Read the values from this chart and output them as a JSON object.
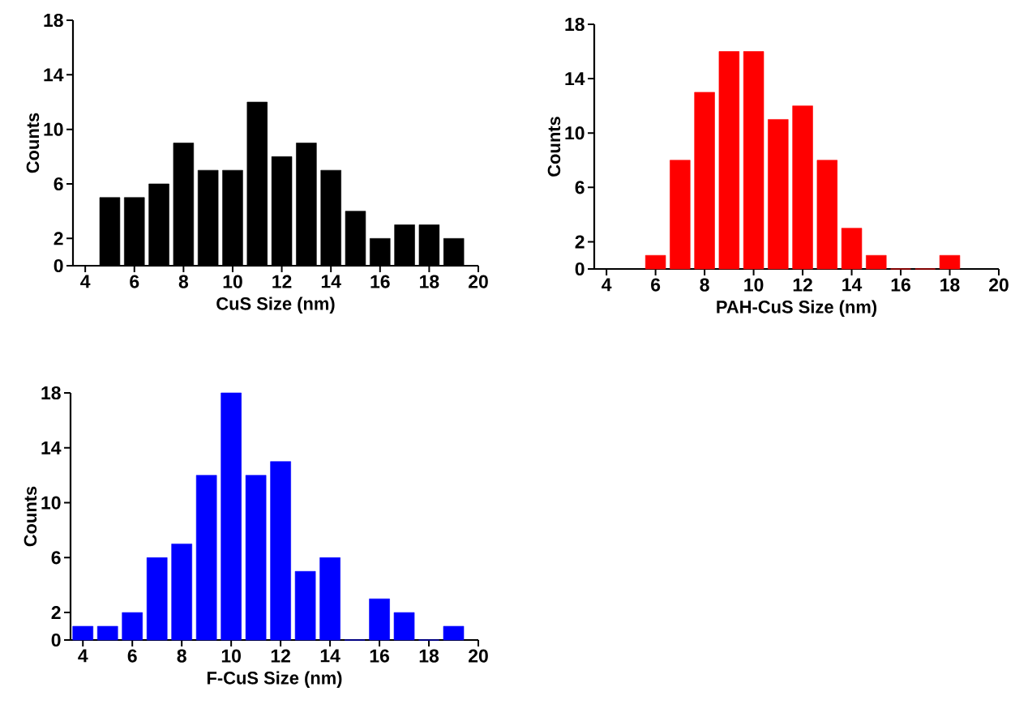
{
  "chart_data": [
    {
      "type": "histogram",
      "xlabel": "CuS Size (nm)",
      "ylabel": "Counts",
      "color": "#000000",
      "bins": [
        4.5,
        5.5,
        6.5,
        7.5,
        8.5,
        9.5,
        10.5,
        11.5,
        12.5,
        13.5,
        14.5,
        15.5,
        16.5,
        17.5,
        18.5,
        19.5
      ],
      "values": [
        5,
        5,
        6,
        9,
        7,
        7,
        12,
        8,
        9,
        7,
        4,
        2,
        3,
        3,
        2
      ],
      "xlim": [
        3.5,
        20
      ],
      "xticks": [
        4,
        6,
        8,
        10,
        12,
        14,
        16,
        18,
        20
      ],
      "ylim": [
        0,
        18
      ],
      "yticks": [
        0,
        2,
        6,
        10,
        14,
        18
      ]
    },
    {
      "type": "histogram",
      "xlabel": "PAH-CuS Size (nm)",
      "ylabel": "Counts",
      "color": "#ff0000",
      "bins": [
        5.5,
        6.5,
        7.5,
        8.5,
        9.5,
        10.5,
        11.5,
        12.5,
        13.5,
        14.5,
        15.5,
        16.5,
        17.5,
        18.5
      ],
      "values": [
        1,
        8,
        13,
        16,
        16,
        11,
        12,
        8,
        3,
        1,
        0,
        0,
        1
      ],
      "xlim": [
        3.5,
        20
      ],
      "xticks": [
        4,
        6,
        8,
        10,
        12,
        14,
        16,
        18,
        20
      ],
      "ylim": [
        0,
        18
      ],
      "yticks": [
        0,
        2,
        6,
        10,
        14,
        18
      ]
    },
    {
      "type": "histogram",
      "xlabel": "F-CuS Size (nm)",
      "ylabel": "Counts",
      "color": "#0000ff",
      "bins": [
        3.5,
        4.5,
        5.5,
        6.5,
        7.5,
        8.5,
        9.5,
        10.5,
        11.5,
        12.5,
        13.5,
        14.5,
        15.5,
        16.5,
        17.5,
        18.5,
        19.5
      ],
      "values": [
        1,
        1,
        2,
        6,
        7,
        12,
        18,
        12,
        13,
        5,
        6,
        0,
        3,
        2,
        0,
        1
      ],
      "xlim": [
        3.5,
        20
      ],
      "xticks": [
        4,
        6,
        8,
        10,
        12,
        14,
        16,
        18,
        20
      ],
      "ylim": [
        0,
        18
      ],
      "yticks": [
        0,
        2,
        6,
        10,
        14,
        18
      ]
    }
  ]
}
